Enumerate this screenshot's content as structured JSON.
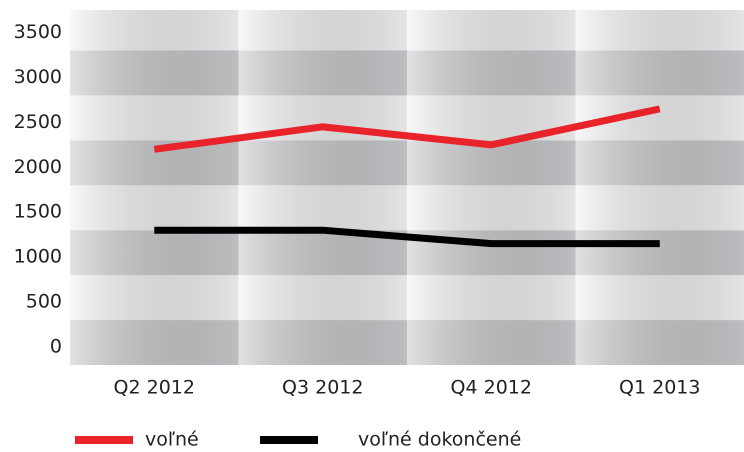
{
  "chart_data": {
    "type": "line",
    "categories": [
      "Q2 2012",
      "Q3 2012",
      "Q4 2012",
      "Q1 2013"
    ],
    "series": [
      {
        "name": "voľné",
        "color": "#e8232a",
        "values": [
          2200,
          2450,
          2250,
          2650
        ]
      },
      {
        "name": "voľné dokončené",
        "color": "#000000",
        "values": [
          1300,
          1300,
          1150,
          1150
        ]
      }
    ],
    "ylim": [
      -200,
      3750
    ],
    "yticks": [
      0,
      500,
      1000,
      1500,
      2000,
      2500,
      3000,
      3500
    ],
    "legend": "bottom"
  }
}
